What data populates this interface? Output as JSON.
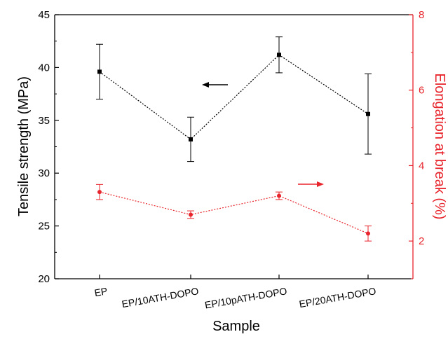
{
  "chart_data": {
    "type": "line",
    "categories": [
      "EP",
      "EP/10ATH-DOPO",
      "EP/10pATH-DOPO",
      "EP/20ATH-DOPO"
    ],
    "xlabel": "Sample",
    "left_axis": {
      "label": "Tensile strength (MPa)",
      "ylim": [
        20,
        45
      ],
      "ticks": [
        "20",
        "25",
        "30",
        "35",
        "40",
        "45"
      ],
      "color": "#000000"
    },
    "right_axis": {
      "label": "Elongation at break (%)",
      "ylim": [
        1,
        8
      ],
      "ticks": [
        "2",
        "4",
        "6",
        "8"
      ],
      "color": "#e8242c"
    },
    "series": [
      {
        "axis": "left",
        "color": "#000000",
        "marker": "square",
        "line_style": "dotted",
        "values": [
          39.6,
          33.2,
          41.2,
          35.6
        ],
        "errors": [
          2.6,
          2.1,
          1.7,
          3.8
        ],
        "arrow_direction": "left"
      },
      {
        "axis": "right",
        "color": "#e8242c",
        "marker": "circle",
        "line_style": "dotted",
        "values": [
          3.3,
          2.7,
          3.2,
          2.2
        ],
        "errors": [
          0.2,
          0.1,
          0.1,
          0.2
        ],
        "arrow_direction": "right"
      }
    ],
    "grid": false,
    "legend": "none"
  }
}
